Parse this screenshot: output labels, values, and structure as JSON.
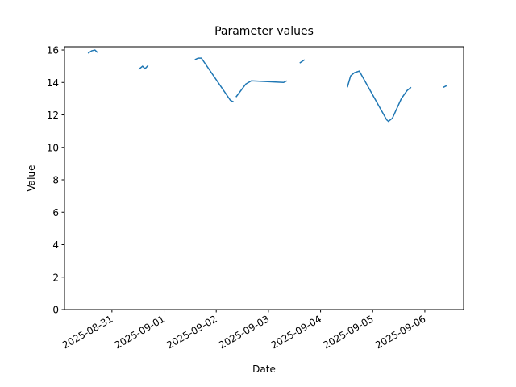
{
  "chart_data": {
    "type": "line",
    "title": "Parameter values",
    "x_label": "Date",
    "y_label": "Value",
    "color": "#1f77b4",
    "x": [
      "2025-08-30T13:00",
      "2025-08-30T14:40",
      "2025-08-30T16:10",
      "2025-08-30T17:20",
      null,
      "2025-08-31T12:15",
      "2025-08-31T14:05",
      "2025-08-31T15:15",
      "2025-08-31T16:40",
      null,
      "2025-09-01T14:10",
      "2025-09-01T15:40",
      "2025-09-01T17:10",
      "2025-09-02T06:30",
      "2025-09-02T08:00",
      null,
      "2025-09-02T09:05",
      "2025-09-02T13:35",
      "2025-09-02T16:10",
      "2025-09-03T07:00",
      "2025-09-03T08:30",
      null,
      "2025-09-03T14:25",
      "2025-09-03T16:40",
      null,
      "2025-09-04T12:20",
      "2025-09-04T13:50",
      "2025-09-04T15:35",
      "2025-09-04T17:50",
      "2025-09-05T06:25",
      "2025-09-05T07:15",
      "2025-09-05T09:05",
      "2025-09-05T13:10",
      "2025-09-05T15:50",
      "2025-09-05T17:40",
      null,
      "2025-09-06T08:30",
      "2025-09-06T10:00"
    ],
    "values": [
      15.8,
      15.95,
      16.0,
      15.85,
      null,
      14.8,
      15.0,
      14.85,
      15.05,
      null,
      15.4,
      15.5,
      15.5,
      12.9,
      12.8,
      null,
      13.1,
      13.9,
      14.1,
      14.0,
      14.1,
      null,
      15.2,
      15.4,
      null,
      13.7,
      14.4,
      14.6,
      14.7,
      11.7,
      11.6,
      11.8,
      13.0,
      13.5,
      13.7,
      null,
      13.7,
      13.8
    ],
    "xlim": [
      "2025-08-30T02:10",
      "2025-09-06T17:50"
    ],
    "xticks": [
      "2025-08-31",
      "2025-09-01",
      "2025-09-02",
      "2025-09-03",
      "2025-09-04",
      "2025-09-05",
      "2025-09-06"
    ],
    "ylim": [
      0,
      16.2
    ],
    "yticks": [
      0,
      2,
      4,
      6,
      8,
      10,
      12,
      14,
      16
    ]
  }
}
